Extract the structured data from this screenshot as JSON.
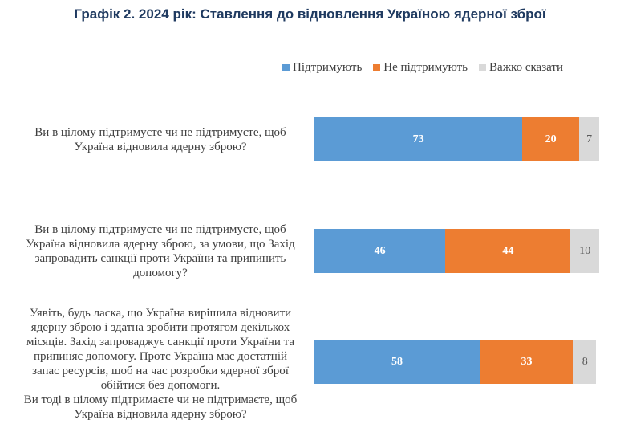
{
  "title": "Графік 2. 2024 рік: Ставлення до відновлення Україною ядерної зброї",
  "legend": [
    {
      "label": "Підтримують",
      "color": "#5b9bd5"
    },
    {
      "label": "Не підтримують",
      "color": "#ed7d31"
    },
    {
      "label": "Важко сказати",
      "color": "#d9d9d9"
    }
  ],
  "chart_data": {
    "type": "bar",
    "orientation": "horizontal",
    "stacked": true,
    "title": "Графік 2. 2024 рік: Ставлення до відновлення Україною ядерної зброї",
    "legend_position": "top-right",
    "grid": false,
    "xlim": [
      0,
      100
    ],
    "categories": [
      "Ви в цілому підтримуєте чи не підтримуєте, щоб\nУкраїна відновила ядерну зброю?",
      "Ви в цілому підтримуєте чи не підтримуєте, щоб\nУкраїна відновила ядерну зброю, за умови, що Захід\nзапровадить санкції проти України та припинить\nдопомогу?",
      "Уявіть, будь ласка, що Україна вирішила відновити\nядерну зброю і здатна зробити протягом декількох\nмісяців. Захід запроваджує санкції проти України та\nприпиняє допомогу. Протс Україна має достатній\nзапас ресурсів, шоб на час розробки ядерної зброї\nобійтися без допомоги.\nВи тоді в цілому підтримаєте чи не підтримаєте, щоб\nУкраїна відновила ядерну зброю?"
    ],
    "series": [
      {
        "name": "Підтримують",
        "color": "#5b9bd5",
        "values": [
          73,
          46,
          58
        ]
      },
      {
        "name": "Не підтримують",
        "color": "#ed7d31",
        "values": [
          20,
          44,
          33
        ]
      },
      {
        "name": "Важко сказати",
        "color": "#d9d9d9",
        "values": [
          7,
          10,
          8
        ]
      }
    ]
  }
}
